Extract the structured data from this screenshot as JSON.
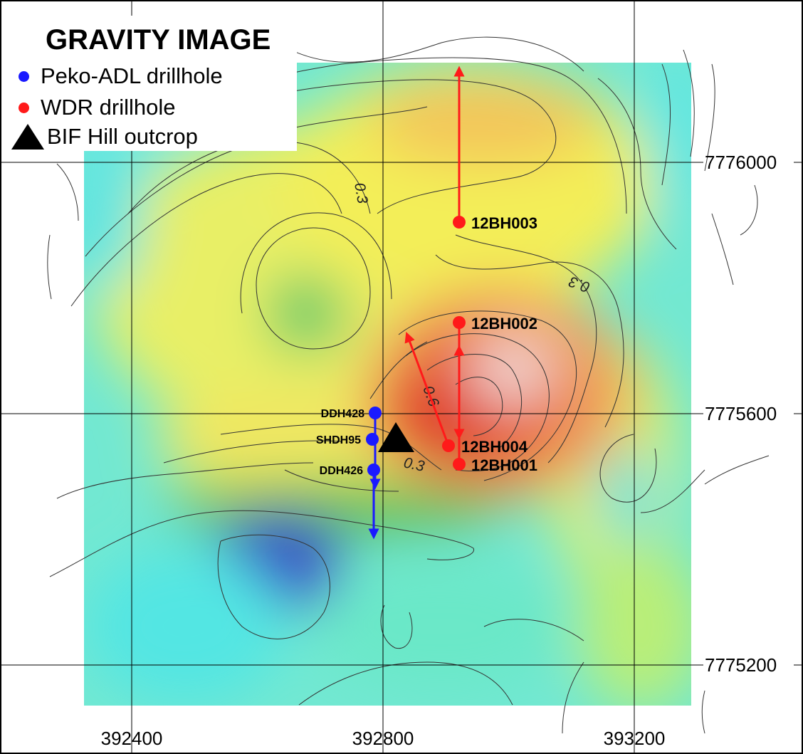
{
  "legend": {
    "title": "GRAVITY IMAGE",
    "items": [
      {
        "label": "Peko-ADL drillhole",
        "symbol": "blue-circle",
        "color": "#1a1aff"
      },
      {
        "label": "WDR drillhole",
        "symbol": "red-circle",
        "color": "#ff1a1a"
      },
      {
        "label": "BIF Hill outcrop",
        "symbol": "black-triangle",
        "color": "#000000"
      }
    ]
  },
  "axes": {
    "x_ticks": [
      "392400",
      "392800",
      "393200"
    ],
    "y_ticks": [
      "7776000",
      "7775600",
      "7775200"
    ]
  },
  "contour_labels": [
    "0.3",
    "0.3",
    "0.6",
    "0.3"
  ],
  "drillholes": {
    "wdr": [
      {
        "id": "12BH003",
        "color": "#ff1a1a"
      },
      {
        "id": "12BH002",
        "color": "#ff1a1a"
      },
      {
        "id": "12BH004",
        "color": "#ff1a1a"
      },
      {
        "id": "12BH001",
        "color": "#ff1a1a"
      }
    ],
    "peko_adl": [
      {
        "id": "DDH428",
        "color": "#1a1aff"
      },
      {
        "id": "SHDH95",
        "color": "#1a1aff"
      },
      {
        "id": "DDH426",
        "color": "#1a1aff"
      }
    ]
  },
  "colors": {
    "gravity_high": "#e53a2a",
    "gravity_mid": "#f2ee5a",
    "gravity_low": "#3c50cf",
    "gravity_cyan": "#52e8e6"
  }
}
